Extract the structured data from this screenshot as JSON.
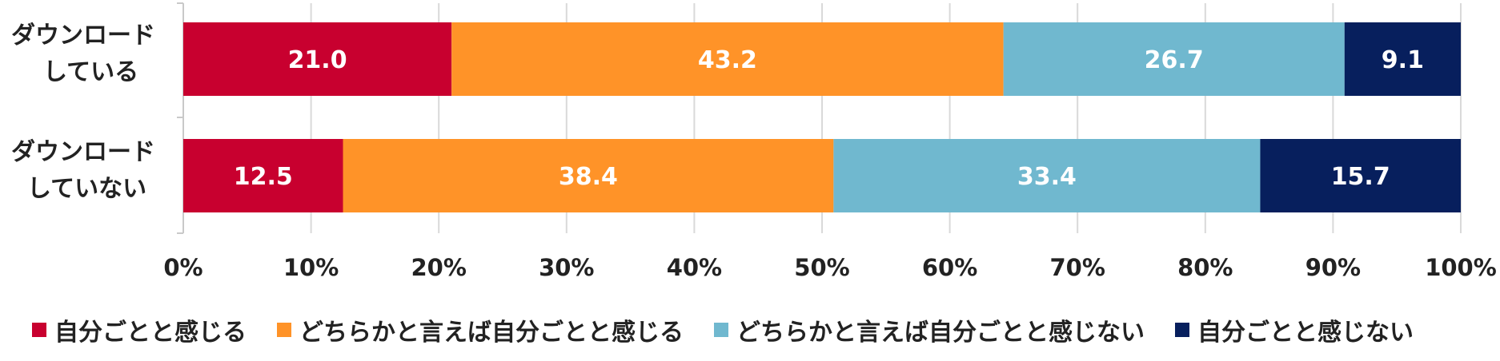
{
  "chart_data": {
    "type": "bar",
    "orientation": "horizontal",
    "stacked": true,
    "categories": [
      "ダウンロード\nしている",
      "ダウンロード\nしていない"
    ],
    "category_lines": [
      [
        "ダウンロード",
        "している"
      ],
      [
        "ダウンロード",
        "していない"
      ]
    ],
    "series": [
      {
        "name": "自分ごとと感じる",
        "values": [
          21.0,
          12.5
        ],
        "color": "#c8002f"
      },
      {
        "name": "どちらかと言えば自分ごとと感じる",
        "values": [
          43.2,
          38.4
        ],
        "color": "#ff9328"
      },
      {
        "name": "どちらかと言えば自分ごとと感じない",
        "values": [
          26.7,
          33.4
        ],
        "color": "#70b8cf"
      },
      {
        "name": "自分ごとと感じない",
        "values": [
          9.1,
          15.7
        ],
        "color": "#071f5d"
      }
    ],
    "value_labels": [
      [
        "21.0",
        "12.5"
      ],
      [
        "43.2",
        "38.4"
      ],
      [
        "26.7",
        "33.4"
      ],
      [
        "9.1",
        "15.7"
      ]
    ],
    "xlim": [
      0,
      100
    ],
    "xticks": [
      "0%",
      "10%",
      "20%",
      "30%",
      "40%",
      "50%",
      "60%",
      "70%",
      "80%",
      "90%",
      "100%"
    ],
    "grid": true,
    "legend_position": "bottom",
    "label_color": "#ffffff"
  }
}
